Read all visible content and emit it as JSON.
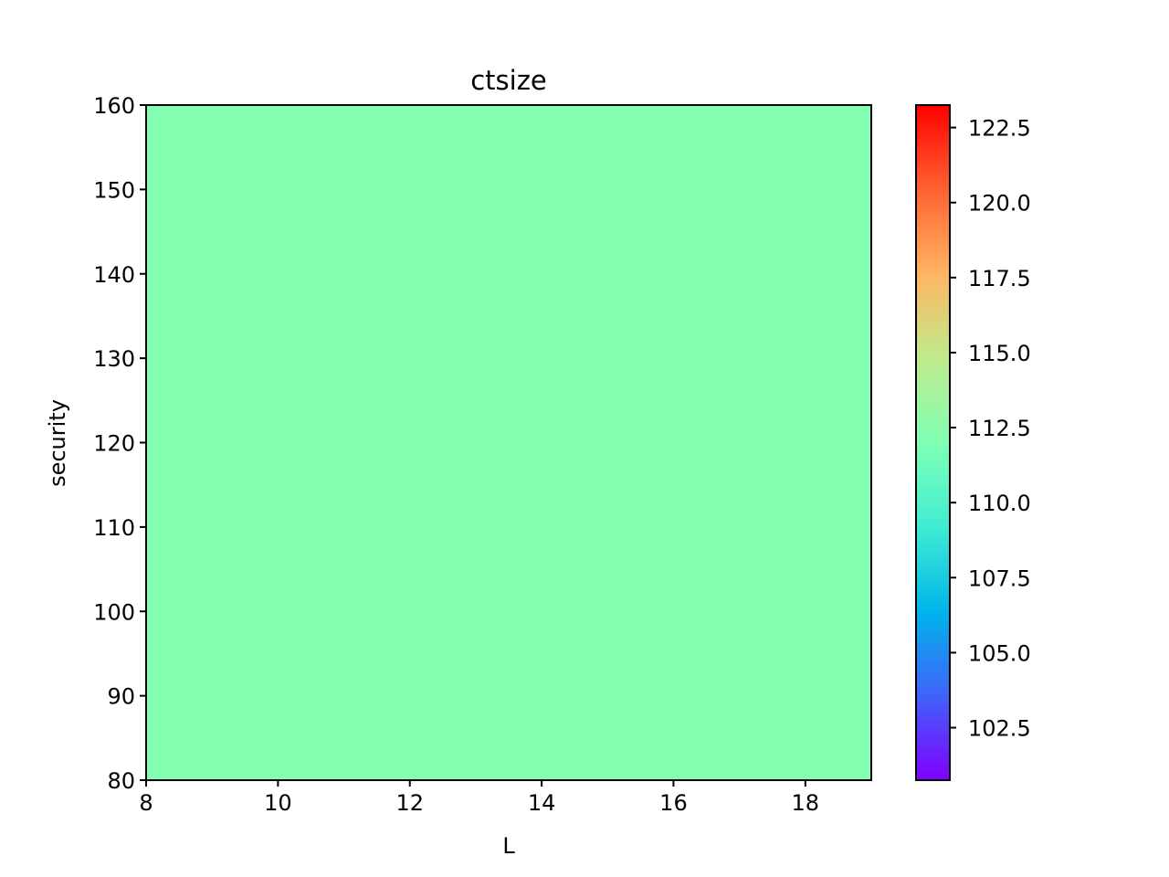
{
  "chart_data": {
    "type": "heatmap",
    "title": "ctsize",
    "xlabel": "L",
    "ylabel": "security",
    "xlim": [
      8,
      19
    ],
    "ylim": [
      80,
      160
    ],
    "x_ticks": [
      8,
      10,
      12,
      14,
      16,
      18
    ],
    "y_ticks": [
      80,
      90,
      100,
      110,
      120,
      130,
      140,
      150,
      160
    ],
    "z_value": 112.0,
    "fill_color": "#84ffb2",
    "colorbar": {
      "colormap": "rainbow",
      "range": [
        100.75,
        123.25
      ],
      "ticks": [
        "102.5",
        "105.0",
        "107.5",
        "110.0",
        "112.5",
        "115.0",
        "117.5",
        "120.0",
        "122.5"
      ]
    },
    "grid": false
  }
}
